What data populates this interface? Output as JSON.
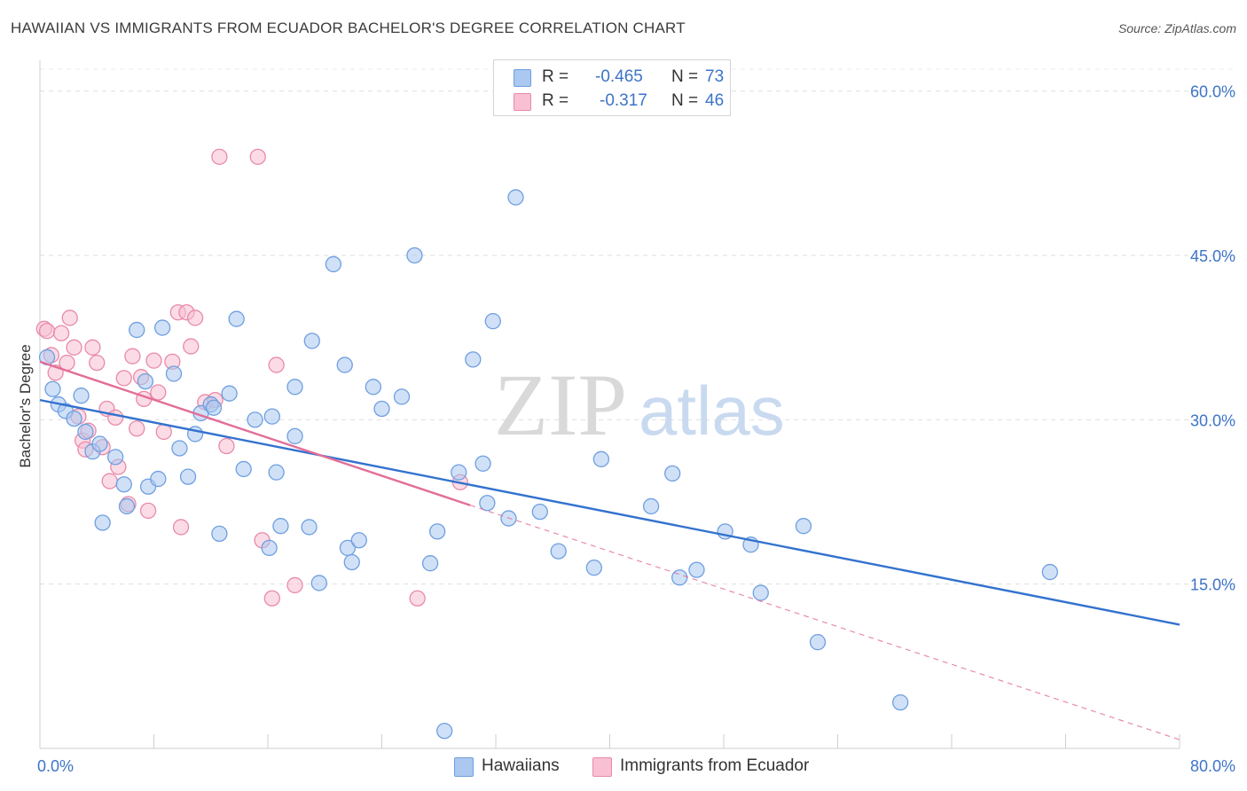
{
  "title": "HAWAIIAN VS IMMIGRANTS FROM ECUADOR BACHELOR'S DEGREE CORRELATION CHART",
  "source": "Source: ZipAtlas.com",
  "watermark": {
    "zip": "ZIP",
    "atlas": "atlas"
  },
  "stats": [
    {
      "r_label": "R =",
      "r": "-0.465",
      "n_label": "N =",
      "n": "73",
      "color": "#aac8f0",
      "border": "#6f9fe0"
    },
    {
      "r_label": "R =",
      "r": "-0.317",
      "n_label": "N =",
      "n": "46",
      "color": "#f8c0d2",
      "border": "#e98aa8"
    }
  ],
  "legend": [
    {
      "label": "Hawaiians",
      "color": "#aac8f0",
      "border": "#6f9fe0"
    },
    {
      "label": "Immigrants from Ecuador",
      "color": "#f8c0d2",
      "border": "#e98aa8"
    }
  ],
  "chart_data": {
    "type": "scatter",
    "xlabel": "",
    "ylabel": "Bachelor's Degree",
    "xlim": [
      0,
      80
    ],
    "ylim": [
      0,
      62
    ],
    "x_tick_labels": [
      {
        "value": 0,
        "label": "0.0%"
      },
      {
        "value": 80,
        "label": "80.0%"
      }
    ],
    "y_tick_labels": [
      {
        "value": 15,
        "label": "15.0%"
      },
      {
        "value": 30,
        "label": "30.0%"
      },
      {
        "value": 45,
        "label": "45.0%"
      },
      {
        "value": 60,
        "label": "60.0%"
      }
    ],
    "grid": "horizontal-dashed",
    "legend_position": "bottom-center",
    "series": [
      {
        "name": "Hawaiians",
        "fill": "#aac8f0",
        "stroke": "#6f9fe0",
        "trend_color": "#3372cf",
        "trend": {
          "x1": 0,
          "y1": 31.8,
          "x2": 80,
          "y2": 11.3,
          "dashed_to": null
        },
        "points": [
          [
            0.5,
            35.7
          ],
          [
            0.9,
            32.8
          ],
          [
            1.3,
            31.4
          ],
          [
            1.8,
            30.8
          ],
          [
            2.4,
            30.1
          ],
          [
            2.9,
            32.2
          ],
          [
            3.2,
            28.9
          ],
          [
            3.7,
            27.1
          ],
          [
            4.2,
            27.8
          ],
          [
            4.4,
            20.6
          ],
          [
            5.3,
            26.6
          ],
          [
            5.9,
            24.1
          ],
          [
            6.1,
            22.1
          ],
          [
            6.8,
            38.2
          ],
          [
            7.4,
            33.5
          ],
          [
            7.6,
            23.9
          ],
          [
            8.3,
            24.6
          ],
          [
            8.6,
            38.4
          ],
          [
            9.4,
            34.2
          ],
          [
            9.8,
            27.4
          ],
          [
            10.4,
            24.8
          ],
          [
            10.9,
            28.7
          ],
          [
            11.3,
            30.6
          ],
          [
            12.0,
            31.4
          ],
          [
            12.2,
            31.1
          ],
          [
            12.6,
            19.6
          ],
          [
            13.3,
            32.4
          ],
          [
            13.8,
            39.2
          ],
          [
            14.3,
            25.5
          ],
          [
            15.1,
            30.0
          ],
          [
            16.1,
            18.3
          ],
          [
            16.6,
            25.2
          ],
          [
            16.3,
            30.3
          ],
          [
            16.9,
            20.3
          ],
          [
            17.9,
            28.5
          ],
          [
            17.9,
            33.0
          ],
          [
            18.9,
            20.2
          ],
          [
            19.1,
            37.2
          ],
          [
            19.6,
            15.1
          ],
          [
            20.6,
            44.2
          ],
          [
            21.4,
            35.0
          ],
          [
            21.6,
            18.3
          ],
          [
            21.9,
            17.0
          ],
          [
            22.4,
            19.0
          ],
          [
            23.4,
            33.0
          ],
          [
            24.0,
            31.0
          ],
          [
            25.4,
            32.1
          ],
          [
            26.3,
            45.0
          ],
          [
            27.4,
            16.9
          ],
          [
            27.9,
            19.8
          ],
          [
            28.4,
            1.6
          ],
          [
            29.4,
            25.2
          ],
          [
            30.4,
            35.5
          ],
          [
            31.1,
            26.0
          ],
          [
            31.4,
            22.4
          ],
          [
            31.8,
            39.0
          ],
          [
            32.9,
            21.0
          ],
          [
            33.4,
            50.3
          ],
          [
            35.1,
            21.6
          ],
          [
            36.4,
            18.0
          ],
          [
            38.9,
            16.5
          ],
          [
            39.4,
            26.4
          ],
          [
            42.9,
            22.1
          ],
          [
            44.4,
            25.1
          ],
          [
            44.9,
            15.6
          ],
          [
            46.1,
            16.3
          ],
          [
            48.1,
            19.8
          ],
          [
            49.9,
            18.6
          ],
          [
            50.6,
            14.2
          ],
          [
            53.6,
            20.3
          ],
          [
            54.6,
            9.7
          ],
          [
            60.4,
            4.2
          ],
          [
            70.9,
            16.1
          ]
        ]
      },
      {
        "name": "Immigrants from Ecuador",
        "fill": "#f8c0d2",
        "stroke": "#e98aa8",
        "trend_color": "#e36e98",
        "trend": {
          "x1": 0,
          "y1": 35.3,
          "x2": 30.2,
          "y2": 22.2,
          "dashed_to": {
            "x": 80,
            "y": 0.8
          }
        },
        "points": [
          [
            0.3,
            38.3
          ],
          [
            0.5,
            38.1
          ],
          [
            0.8,
            35.9
          ],
          [
            1.1,
            34.3
          ],
          [
            1.5,
            37.9
          ],
          [
            1.9,
            35.2
          ],
          [
            2.1,
            39.3
          ],
          [
            2.4,
            36.6
          ],
          [
            2.7,
            30.3
          ],
          [
            3.0,
            28.1
          ],
          [
            3.2,
            27.3
          ],
          [
            3.4,
            29.0
          ],
          [
            3.7,
            36.6
          ],
          [
            4.0,
            35.2
          ],
          [
            4.4,
            27.5
          ],
          [
            4.7,
            31.0
          ],
          [
            4.9,
            24.4
          ],
          [
            5.3,
            30.2
          ],
          [
            5.5,
            25.7
          ],
          [
            5.9,
            33.8
          ],
          [
            6.2,
            22.3
          ],
          [
            6.5,
            35.8
          ],
          [
            6.8,
            29.2
          ],
          [
            7.1,
            33.9
          ],
          [
            7.3,
            31.9
          ],
          [
            7.6,
            21.7
          ],
          [
            8.0,
            35.4
          ],
          [
            8.3,
            32.5
          ],
          [
            8.7,
            28.9
          ],
          [
            9.3,
            35.3
          ],
          [
            9.7,
            39.8
          ],
          [
            9.9,
            20.2
          ],
          [
            10.3,
            39.8
          ],
          [
            10.6,
            36.7
          ],
          [
            10.9,
            39.3
          ],
          [
            11.6,
            31.6
          ],
          [
            12.3,
            31.8
          ],
          [
            12.6,
            54.0
          ],
          [
            13.1,
            27.6
          ],
          [
            15.3,
            54.0
          ],
          [
            15.6,
            19.0
          ],
          [
            16.3,
            13.7
          ],
          [
            16.6,
            35.0
          ],
          [
            17.9,
            14.9
          ],
          [
            26.5,
            13.7
          ],
          [
            29.5,
            24.3
          ]
        ]
      }
    ]
  }
}
